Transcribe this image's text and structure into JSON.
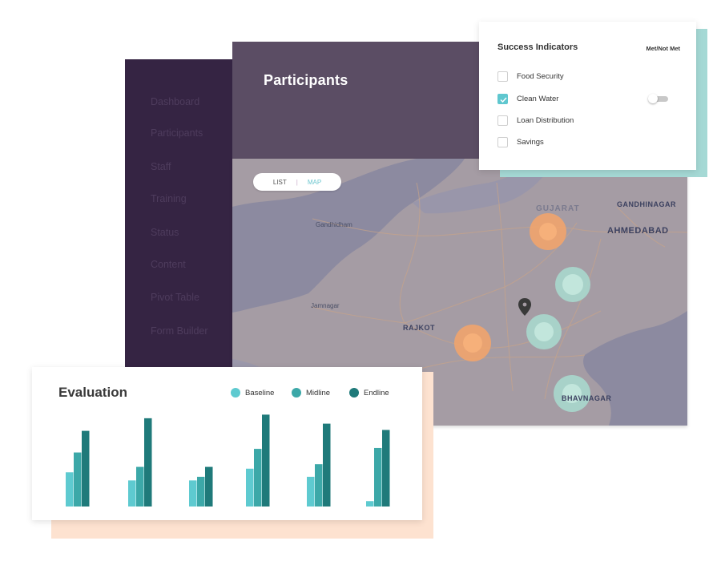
{
  "sidebar": {
    "items": [
      {
        "label": "Dashboard"
      },
      {
        "label": "Participants"
      },
      {
        "label": "Staff"
      },
      {
        "label": "Training"
      },
      {
        "label": "Status"
      },
      {
        "label": "Content"
      },
      {
        "label": "Pivot Table"
      },
      {
        "label": "Form Builder"
      }
    ]
  },
  "header": {
    "title": "Participants"
  },
  "view_toggle": {
    "list": "LIST",
    "separator": "|",
    "map": "MAP",
    "active": "MAP"
  },
  "map": {
    "labels": {
      "gujarat": "GUJARAT",
      "gandhinagar": "GANDHINAGAR",
      "ahmedabad": "AHMEDABAD",
      "gandhidham": "Gandhidham",
      "jamnagar": "Jamnagar",
      "rajkot": "RAJKOT",
      "bhavnagar": "BHAVNAGAR"
    },
    "marker_icon": "map-pin-icon"
  },
  "success_indicators": {
    "title": "Success Indicators",
    "met_label": "Met/Not Met",
    "items": [
      {
        "label": "Food Security",
        "checked": false
      },
      {
        "label": "Clean Water",
        "checked": true
      },
      {
        "label": "Loan Distribution",
        "checked": false
      },
      {
        "label": "Savings",
        "checked": false
      }
    ],
    "toggle_on": false
  },
  "evaluation": {
    "title": "Evaluation",
    "legend": [
      {
        "label": "Baseline",
        "color": "#5ecad0"
      },
      {
        "label": "Midline",
        "color": "#3ca8a8"
      },
      {
        "label": "Endline",
        "color": "#1f7a7a"
      }
    ]
  },
  "colors": {
    "sidebar": "#352443",
    "header": "#5b4d64",
    "accent_teal": "#5fc7cf",
    "cluster_orange": "#f5a56a",
    "cluster_teal": "#a8dcd0"
  },
  "chart_data": {
    "type": "bar",
    "categories": [
      "",
      "",
      "",
      "",
      "",
      ""
    ],
    "series": [
      {
        "name": "Baseline",
        "values": [
          38,
          29,
          29,
          42,
          33,
          6
        ]
      },
      {
        "name": "Midline",
        "values": [
          60,
          44,
          33,
          64,
          47,
          65
        ]
      },
      {
        "name": "Endline",
        "values": [
          84,
          98,
          44,
          102,
          92,
          85
        ]
      }
    ],
    "ylim": [
      0,
      105
    ],
    "grid": false,
    "legend": "top-right"
  }
}
